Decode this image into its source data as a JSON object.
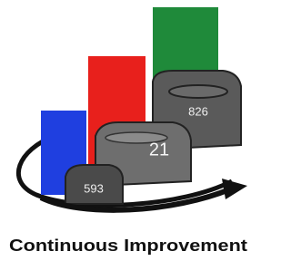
{
  "tagline": "Continuous Improvement",
  "blocks": [
    {
      "label": 593
    },
    {
      "label": 21
    },
    {
      "label": 826
    }
  ]
}
